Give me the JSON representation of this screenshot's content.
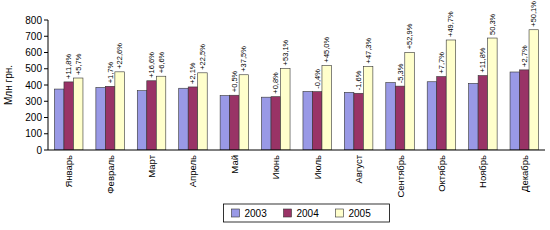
{
  "chart_data": {
    "type": "bar",
    "y_label": "Млн грн.",
    "categories": [
      "Январь",
      "Февраль",
      "Март",
      "Апрель",
      "Май",
      "Июнь",
      "Июль",
      "Август",
      "Сентябрь",
      "Октябрь",
      "Ноябрь",
      "Декабрь"
    ],
    "series": [
      {
        "name": "2003",
        "color": "#9999e6",
        "values": [
          375,
          385,
          365,
          380,
          335,
          325,
          360,
          355,
          415,
          420,
          410,
          480
        ]
      },
      {
        "name": "2004",
        "color": "#993366",
        "values": [
          419,
          392,
          426,
          388,
          337,
          328,
          359,
          349,
          393,
          452,
          458,
          493
        ],
        "annotations": [
          "+11,8%",
          "+1,7%",
          "+16,6%",
          "+2,1%",
          "+0,5%",
          "+0,8%",
          "-0,4%",
          "-1,6%",
          "-5,3%",
          "+7,7%",
          "+11,8%",
          "+2,7%"
        ]
      },
      {
        "name": "2005",
        "color": "#ffffcc",
        "values": [
          443,
          481,
          454,
          475,
          463,
          502,
          520,
          514,
          601,
          677,
          689,
          740
        ],
        "annotations": [
          "+5,7%",
          "+22,6%",
          "+6,6%",
          "+22,5%",
          "+37,5%",
          "+53,1%",
          "+45,0%",
          "+47,3%",
          "+52,9%",
          "+49,7%",
          "50,3%",
          "+50,1%"
        ]
      }
    ],
    "ylim": [
      0,
      800
    ],
    "yticks": [
      0,
      100,
      200,
      300,
      400,
      500,
      600,
      700,
      800
    ],
    "grid": false,
    "legend": "bottom"
  }
}
